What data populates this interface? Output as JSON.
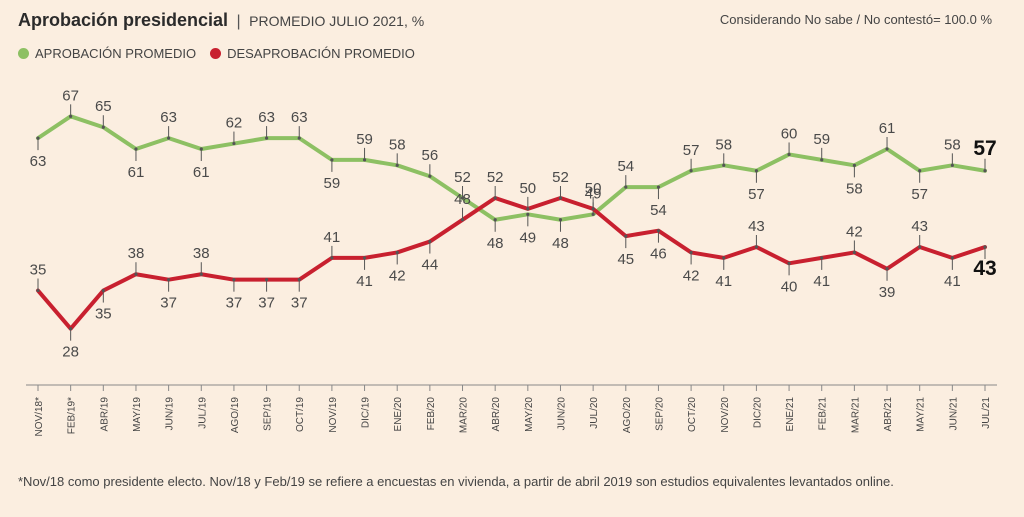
{
  "header": {
    "title": "Aprobación presidencial",
    "separator": "|",
    "subtitle": "PROMEDIO JULIO 2021, %",
    "note": "Considerando No sabe / No contestó= 100.0 %"
  },
  "footnote": "*Nov/18 como presidente electo. Nov/18 y Feb/19 se refiere a encuestas en vivienda, a partir de abril 2019 son estudios equivalentes levantados online.",
  "colors": {
    "approval": "#8dc063",
    "disapproval": "#c8202f",
    "background": "#fbeee0",
    "axis": "#888888"
  },
  "chart_data": {
    "type": "line",
    "categories": [
      "NOV/18*",
      "FEB/19*",
      "ABR/19",
      "MAY/19",
      "JUN/19",
      "JUL/19",
      "AGO/19",
      "SEP/19",
      "OCT/19",
      "NOV/19",
      "DIC/19",
      "ENE/20",
      "FEB/20",
      "MAR/20",
      "ABR/20",
      "MAY/20",
      "JUN/20",
      "JUL/20",
      "AGO/20",
      "SEP/20",
      "OCT/20",
      "NOV/20",
      "DIC/20",
      "ENE/21",
      "FEB/21",
      "MAR/21",
      "ABR/21",
      "MAY/21",
      "JUN/21",
      "JUL/21"
    ],
    "series": [
      {
        "name": "APROBACIÓN PROMEDIO",
        "color": "#8dc063",
        "values": [
          63,
          67,
          65,
          61,
          63,
          61,
          62,
          63,
          63,
          59,
          59,
          58,
          56,
          52,
          48,
          49,
          48,
          49,
          54,
          54,
          57,
          58,
          57,
          60,
          59,
          58,
          61,
          57,
          58,
          57
        ]
      },
      {
        "name": "DESAPROBACIÓN PROMEDIO",
        "color": "#c8202f",
        "values": [
          35,
          28,
          35,
          38,
          37,
          38,
          37,
          37,
          37,
          41,
          41,
          42,
          44,
          48,
          52,
          50,
          52,
          50,
          45,
          46,
          42,
          41,
          43,
          40,
          41,
          42,
          39,
          43,
          41,
          43
        ]
      }
    ],
    "label_positions": {
      "approval": [
        "below",
        "above",
        "above",
        "below",
        "above",
        "below",
        "above",
        "above",
        "above",
        "below",
        "above",
        "above",
        "above",
        "above",
        "below",
        "below",
        "below",
        "above",
        "above",
        "below",
        "above",
        "above",
        "below",
        "above",
        "above",
        "below",
        "above",
        "below",
        "above",
        "above"
      ],
      "disapproval": [
        "above",
        "below",
        "below",
        "above",
        "below",
        "above",
        "below",
        "below",
        "below",
        "above",
        "below",
        "below",
        "below",
        "above",
        "above",
        "above",
        "above",
        "above",
        "below",
        "below",
        "below",
        "below",
        "above",
        "below",
        "below",
        "above",
        "below",
        "above",
        "below",
        "below"
      ]
    },
    "final_emphasis": true,
    "ylim": [
      25,
      70
    ],
    "xlabel": "",
    "ylabel": "",
    "grid": false,
    "legend": "top-left"
  }
}
